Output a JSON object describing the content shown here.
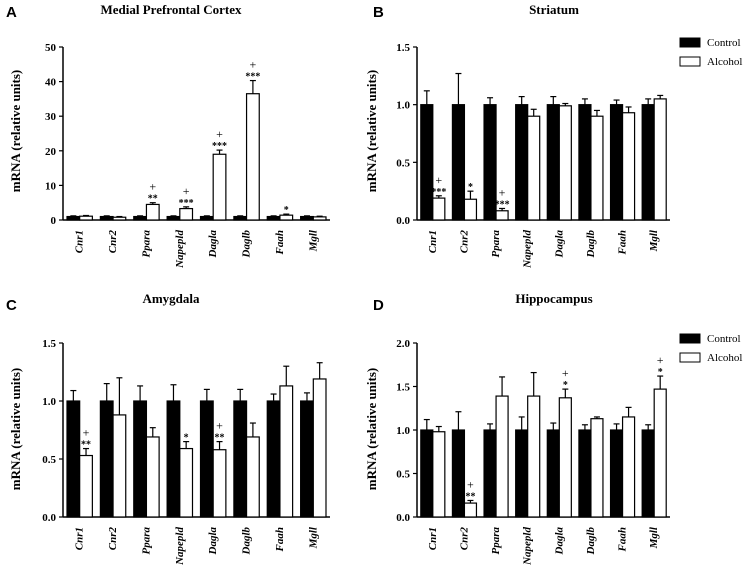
{
  "legend": {
    "control": "Control",
    "alcohol": "Alcohol",
    "placement": "top-right"
  },
  "colors": {
    "control": "#000000",
    "alcohol": "#ffffff",
    "outline": "#000000"
  },
  "chart_data": [
    {
      "panel": "A",
      "type": "bar",
      "title": "Medial Prefrontal Cortex",
      "ylabel": "mRNA (relative units)",
      "ylim": [
        0,
        50
      ],
      "yticks": [
        "0",
        "10",
        "20",
        "30",
        "40",
        "50"
      ],
      "categories": [
        "Cnr1",
        "Cnr2",
        "Ppara",
        "Napepld",
        "Dagla",
        "Daglb",
        "Faah",
        "Mgll"
      ],
      "series": [
        {
          "name": "Control",
          "values": [
            1,
            1,
            1,
            1,
            1,
            1,
            1,
            1
          ],
          "errors": [
            0.2,
            0.2,
            0.2,
            0.2,
            0.2,
            0.2,
            0.2,
            0.2
          ]
        },
        {
          "name": "Alcohol",
          "values": [
            1.1,
            0.8,
            4.5,
            3.3,
            19,
            36.5,
            1.4,
            0.9
          ],
          "errors": [
            0.2,
            0.2,
            0.5,
            0.5,
            1.2,
            3.8,
            0.3,
            0.2
          ]
        }
      ],
      "annotations": [
        {
          "category": "Ppara",
          "stars": "**",
          "plus": "+"
        },
        {
          "category": "Napepld",
          "stars": "***",
          "plus": "+"
        },
        {
          "category": "Dagla",
          "stars": "***",
          "plus": "+"
        },
        {
          "category": "Daglb",
          "stars": "***",
          "plus": "+"
        },
        {
          "category": "Faah",
          "stars": "*",
          "plus": ""
        }
      ]
    },
    {
      "panel": "B",
      "type": "bar",
      "title": "Striatum",
      "ylabel": "mRNA (relative units)",
      "ylim": [
        0,
        1.5
      ],
      "yticks": [
        "0.0",
        "0.5",
        "1.0",
        "1.5"
      ],
      "categories": [
        "Cnr1",
        "Cnr2",
        "Ppara",
        "Napepld",
        "Dagla",
        "Daglb",
        "Faah",
        "Mgll"
      ],
      "series": [
        {
          "name": "Control",
          "values": [
            1,
            1,
            1,
            1,
            1,
            1,
            1,
            1
          ],
          "errors": [
            0.12,
            0.27,
            0.06,
            0.07,
            0.07,
            0.05,
            0.04,
            0.05
          ]
        },
        {
          "name": "Alcohol",
          "values": [
            0.19,
            0.18,
            0.08,
            0.9,
            0.99,
            0.9,
            0.93,
            1.05
          ],
          "errors": [
            0.02,
            0.07,
            0.02,
            0.06,
            0.02,
            0.05,
            0.05,
            0.03
          ]
        }
      ],
      "annotations": [
        {
          "category": "Cnr1",
          "stars": "***",
          "plus": "+"
        },
        {
          "category": "Cnr2",
          "stars": "*",
          "plus": ""
        },
        {
          "category": "Ppara",
          "stars": "***",
          "plus": "+"
        }
      ]
    },
    {
      "panel": "C",
      "type": "bar",
      "title": "Amygdala",
      "ylabel": "mRNA (relative units)",
      "ylim": [
        0,
        1.5
      ],
      "yticks": [
        "0.0",
        "0.5",
        "1.0",
        "1.5"
      ],
      "categories": [
        "Cnr1",
        "Cnr2",
        "Ppara",
        "Napepld",
        "Dagla",
        "Daglb",
        "Faah",
        "Mgll"
      ],
      "series": [
        {
          "name": "Control",
          "values": [
            1,
            1,
            1,
            1,
            1,
            1,
            1,
            1
          ],
          "errors": [
            0.09,
            0.15,
            0.13,
            0.14,
            0.1,
            0.1,
            0.06,
            0.07
          ]
        },
        {
          "name": "Alcohol",
          "values": [
            0.53,
            0.88,
            0.69,
            0.59,
            0.58,
            0.69,
            1.13,
            1.19
          ],
          "errors": [
            0.06,
            0.32,
            0.08,
            0.06,
            0.07,
            0.12,
            0.17,
            0.14
          ]
        }
      ],
      "annotations": [
        {
          "category": "Cnr1",
          "stars": "**",
          "plus": "+"
        },
        {
          "category": "Napepld",
          "stars": "*",
          "plus": ""
        },
        {
          "category": "Dagla",
          "stars": "**",
          "plus": "+"
        }
      ]
    },
    {
      "panel": "D",
      "type": "bar",
      "title": "Hippocampus",
      "ylabel": "mRNA (relative units)",
      "ylim": [
        0,
        2.0
      ],
      "yticks": [
        "0.0",
        "0.5",
        "1.0",
        "1.5",
        "2.0"
      ],
      "categories": [
        "Cnr1",
        "Cnr2",
        "Ppara",
        "Napepld",
        "Dagla",
        "Daglb",
        "Faah",
        "Mgll"
      ],
      "series": [
        {
          "name": "Control",
          "values": [
            1,
            1,
            1,
            1,
            1,
            1,
            1,
            1
          ],
          "errors": [
            0.12,
            0.21,
            0.07,
            0.15,
            0.08,
            0.06,
            0.07,
            0.06
          ]
        },
        {
          "name": "Alcohol",
          "values": [
            0.98,
            0.16,
            1.39,
            1.39,
            1.37,
            1.13,
            1.15,
            1.47
          ],
          "errors": [
            0.06,
            0.03,
            0.22,
            0.27,
            0.1,
            0.02,
            0.11,
            0.15
          ]
        }
      ],
      "annotations": [
        {
          "category": "Cnr2",
          "stars": "**",
          "plus": "+"
        },
        {
          "category": "Dagla",
          "stars": "*",
          "plus": "+"
        },
        {
          "category": "Mgll",
          "stars": "*",
          "plus": "+"
        }
      ]
    }
  ]
}
